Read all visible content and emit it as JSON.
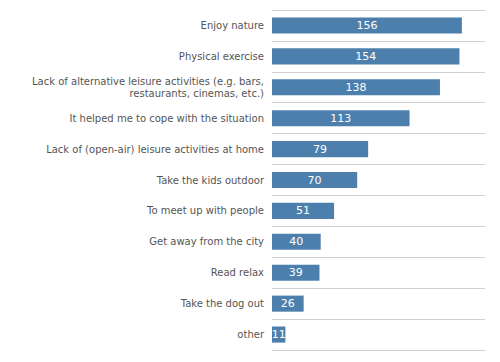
{
  "chart_data": {
    "type": "bar",
    "orientation": "horizontal",
    "categories": [
      "other",
      "Take the dog out",
      "Read relax",
      "Get away from the city",
      "To meet up with people",
      "Take the kids outdoor",
      "Lack of (open-air) leisure activities at home",
      "It helped me to cope with the situation",
      "Lack of alternative leisure activities (e.g. bars,\nrestaurants, cinemas, etc.)",
      "Physical exercise",
      "Enjoy nature"
    ],
    "values": [
      11,
      26,
      39,
      40,
      51,
      70,
      79,
      113,
      138,
      154,
      156
    ],
    "color": "#4d7fac",
    "xlim": [
      0,
      175
    ],
    "grid": true,
    "data_labels": true,
    "tick_labels": "y"
  }
}
